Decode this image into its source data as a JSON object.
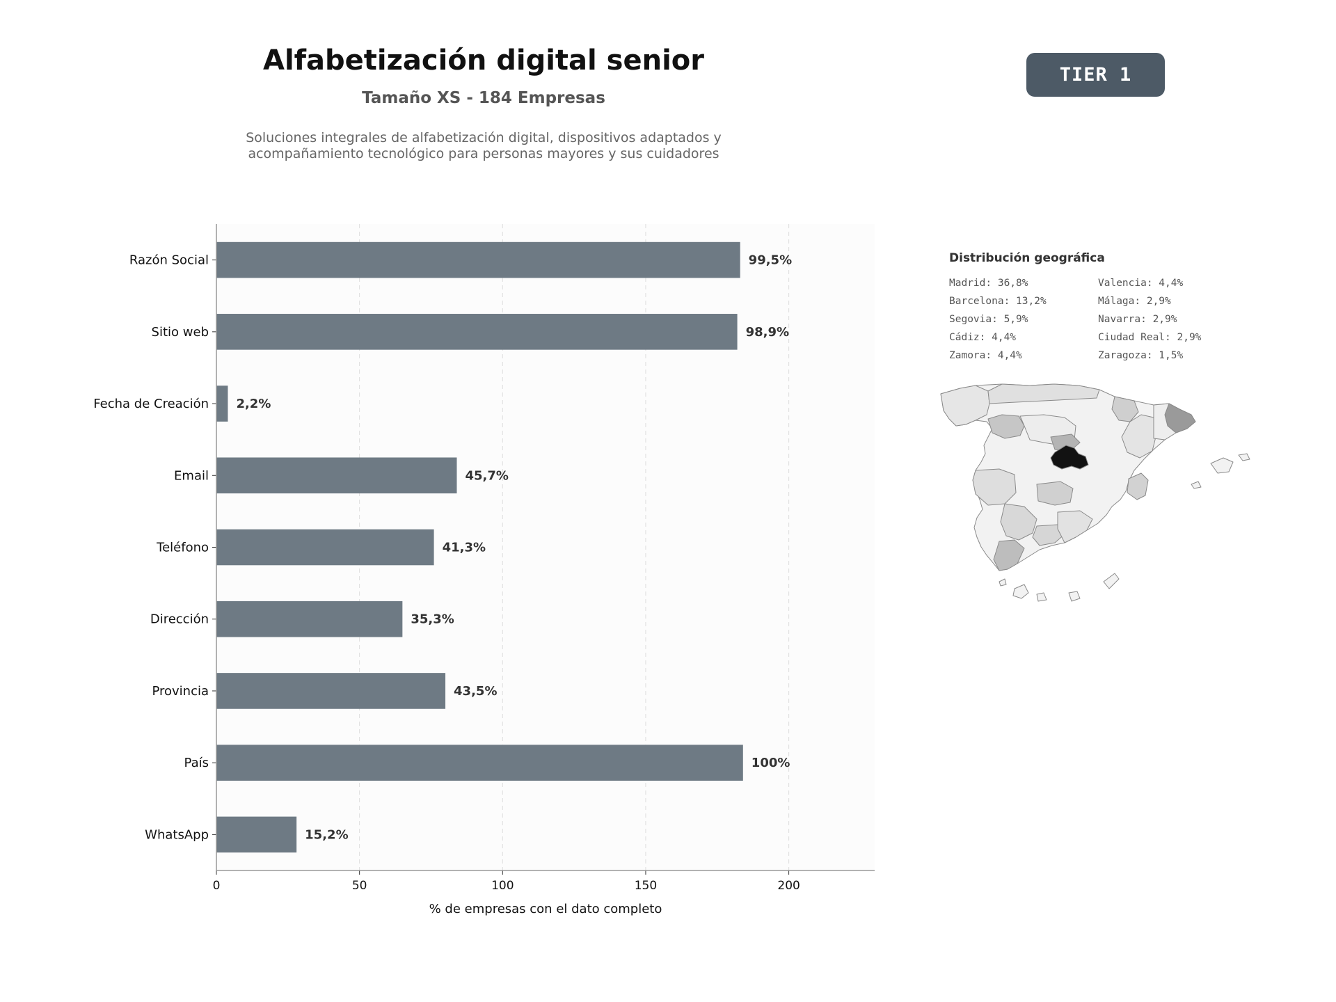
{
  "header": {
    "title": "Alfabetización digital senior",
    "subtitle": "Tamaño XS - 184 Empresas",
    "description": "Soluciones integrales de alfabetización digital, dispositivos adaptados y acompañamiento tecnológico para personas mayores y sus cuidadores"
  },
  "badge": {
    "label": "TIER 1"
  },
  "chart_data": {
    "type": "bar",
    "orientation": "horizontal",
    "categories": [
      "Razón Social",
      "Sitio web",
      "Fecha de Creación",
      "Email",
      "Teléfono",
      "Dirección",
      "Provincia",
      "País",
      "WhatsApp"
    ],
    "values": [
      183,
      182,
      4,
      84,
      76,
      65,
      80,
      184,
      28
    ],
    "value_labels": [
      "99,5%",
      "98,9%",
      "2,2%",
      "45,7%",
      "41,3%",
      "35,3%",
      "43,5%",
      "100%",
      "15,2%"
    ],
    "xlabel": "% de empresas con el dato completo",
    "ylabel": "",
    "xlim": [
      0,
      230
    ],
    "xticks": [
      0,
      50,
      100,
      150,
      200
    ],
    "grid": "vertical dashed",
    "bar_color": "#6e7a84"
  },
  "geo": {
    "title": "Distribución geográfica",
    "left_column": [
      "Madrid: 36,8%",
      "Barcelona: 13,2%",
      "Segovia: 5,9%",
      "Cádiz: 4,4%",
      "Zamora: 4,4%"
    ],
    "right_column": [
      "Valencia: 4,4%",
      "Málaga: 2,9%",
      "Navarra: 2,9%",
      "Ciudad Real: 2,9%",
      "Zaragoza: 1,5%"
    ]
  }
}
